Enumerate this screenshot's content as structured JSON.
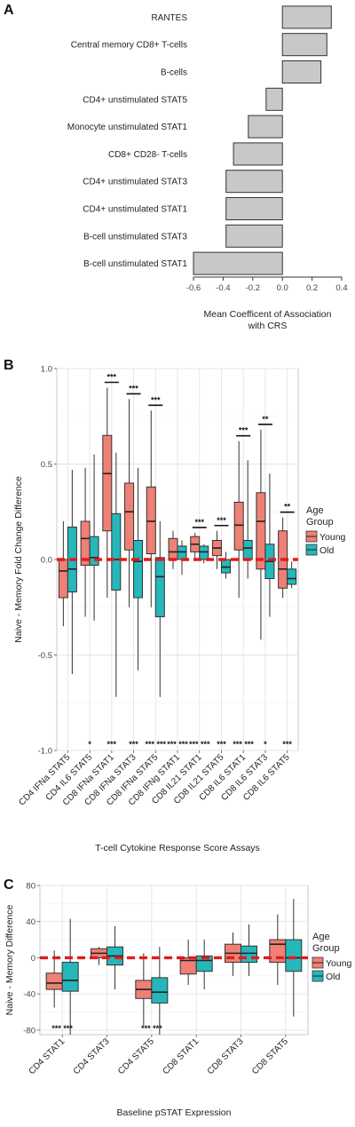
{
  "panels": {
    "A": {
      "letter": "A",
      "chart_data": {
        "type": "bar",
        "orientation": "horizontal",
        "categories": [
          "RANTES",
          "Central memory CD8+ T-cells",
          "B-cells",
          "CD4+ unstimulated STAT5",
          "Monocyte unstimulated STAT1",
          "CD8+ CD28- T-cells",
          "CD4+ unstimulated STAT3",
          "CD4+ unstimulated STAT1",
          "B-cell unstimulated STAT3",
          "B-cell unstimulated STAT1"
        ],
        "values": [
          0.33,
          0.3,
          0.26,
          -0.11,
          -0.23,
          -0.33,
          -0.38,
          -0.38,
          -0.38,
          -0.6
        ],
        "xlabel": "Mean Coefficent of Association\nwith CRS",
        "xlim": [
          -0.6,
          0.4
        ],
        "ticks": [
          -0.6,
          -0.4,
          -0.2,
          0.0,
          0.2,
          0.4
        ],
        "tick_labels": [
          "-0.6",
          "-0.4",
          "-0.2",
          "0.0",
          "0.2",
          "0.4"
        ],
        "bar_color": "#c8c8c8",
        "grid": false
      }
    },
    "B": {
      "letter": "B",
      "chart_data": {
        "type": "box",
        "categories": [
          "CD4 IFNa STAT5",
          "CD4 IL6 STAT5",
          "CD8 IFNa STAT1",
          "CD8 IFNa STAT3",
          "CD8 IFNa STAT5",
          "CD8 IFNg STAT1",
          "CD8 IL21 STAT1",
          "CD8 IL21 STAT5",
          "CD8 IL6 STAT1",
          "CD8 IL6 STAT3",
          "CD8 IL6 STAT5"
        ],
        "series": [
          {
            "name": "Young",
            "color": "#ef8075",
            "boxes": [
              {
                "min": -0.35,
                "q1": -0.2,
                "median": -0.06,
                "q3": 0.0,
                "max": 0.2
              },
              {
                "min": -0.3,
                "q1": -0.03,
                "median": 0.11,
                "q3": 0.2,
                "max": 0.48
              },
              {
                "min": -0.2,
                "q1": 0.15,
                "median": 0.45,
                "q3": 0.65,
                "max": 0.9
              },
              {
                "min": -0.25,
                "q1": 0.05,
                "median": 0.25,
                "q3": 0.4,
                "max": 0.84
              },
              {
                "min": -0.25,
                "q1": 0.03,
                "median": 0.2,
                "q3": 0.38,
                "max": 0.78
              },
              {
                "min": -0.05,
                "q1": 0.0,
                "median": 0.04,
                "q3": 0.11,
                "max": 0.15
              },
              {
                "min": 0.0,
                "q1": 0.04,
                "median": 0.08,
                "q3": 0.12,
                "max": 0.14
              },
              {
                "min": -0.05,
                "q1": 0.02,
                "median": 0.06,
                "q3": 0.1,
                "max": 0.15
              },
              {
                "min": -0.2,
                "q1": 0.05,
                "median": 0.18,
                "q3": 0.3,
                "max": 0.62
              },
              {
                "min": -0.42,
                "q1": -0.05,
                "median": 0.2,
                "q3": 0.35,
                "max": 0.68
              },
              {
                "min": -0.2,
                "q1": -0.15,
                "median": -0.05,
                "q3": 0.15,
                "max": 0.22
              }
            ]
          },
          {
            "name": "Old",
            "color": "#26b7ba",
            "boxes": [
              {
                "min": -0.6,
                "q1": -0.17,
                "median": -0.05,
                "q3": 0.17,
                "max": 0.47
              },
              {
                "min": -0.32,
                "q1": -0.03,
                "median": 0.01,
                "q3": 0.12,
                "max": 0.55
              },
              {
                "min": -0.72,
                "q1": -0.16,
                "median": 0.0,
                "q3": 0.24,
                "max": 0.56
              },
              {
                "min": -0.58,
                "q1": -0.2,
                "median": -0.01,
                "q3": 0.1,
                "max": 0.48
              },
              {
                "min": -0.72,
                "q1": -0.3,
                "median": -0.09,
                "q3": 0.01,
                "max": 0.2
              },
              {
                "min": -0.08,
                "q1": 0.0,
                "median": 0.04,
                "q3": 0.07,
                "max": 0.1
              },
              {
                "min": -0.02,
                "q1": 0.0,
                "median": 0.04,
                "q3": 0.07,
                "max": 0.08
              },
              {
                "min": -0.1,
                "q1": -0.07,
                "median": -0.04,
                "q3": 0.0,
                "max": 0.04
              },
              {
                "min": -0.1,
                "q1": 0.0,
                "median": 0.06,
                "q3": 0.1,
                "max": 0.52
              },
              {
                "min": -0.3,
                "q1": -0.1,
                "median": -0.01,
                "q3": 0.08,
                "max": 0.45
              },
              {
                "min": -0.15,
                "q1": -0.13,
                "median": -0.1,
                "q3": -0.05,
                "max": -0.01
              }
            ]
          }
        ],
        "top_sig": [
          "",
          "",
          "***",
          "***",
          "***",
          "",
          "***",
          "***",
          "***",
          "**",
          "**"
        ],
        "bottom_sig": [
          "",
          "*",
          "***",
          "***",
          "*** ***",
          "*** ***",
          "*** ***",
          "***",
          "*** ***",
          "*",
          "***"
        ],
        "reference_line": 0,
        "ylim": [
          -1.0,
          1.0
        ],
        "ticks": [
          -1.0,
          -0.5,
          0.0,
          0.5,
          1.0
        ],
        "tick_labels": [
          "-1.0",
          "-0.5",
          "0.0",
          "0.5",
          "1.0"
        ],
        "ylabel": "Naive - Memory Fold Change Difference",
        "xlabel": "T-cell Cytokine Response Score Assays",
        "legend_title": "Age\nGroup",
        "legend": [
          "Young",
          "Old"
        ],
        "legend_position": "right",
        "grid": true
      }
    },
    "C": {
      "letter": "C",
      "chart_data": {
        "type": "box",
        "categories": [
          "CD4 STAT1",
          "CD4 STAT3",
          "CD4 STAT5",
          "CD8 STAT1",
          "CD8 STAT3",
          "CD8 STAT5"
        ],
        "series": [
          {
            "name": "Young",
            "color": "#ef8075",
            "boxes": [
              {
                "min": -55,
                "q1": -35,
                "median": -28,
                "q3": -17,
                "max": 8
              },
              {
                "min": -8,
                "q1": 0,
                "median": 5,
                "q3": 10,
                "max": 12
              },
              {
                "min": -75,
                "q1": -45,
                "median": -35,
                "q3": -25,
                "max": 5
              },
              {
                "min": -30,
                "q1": -18,
                "median": -3,
                "q3": 0,
                "max": 20
              },
              {
                "min": -20,
                "q1": -5,
                "median": 5,
                "q3": 15,
                "max": 28
              },
              {
                "min": -30,
                "q1": -5,
                "median": 15,
                "q3": 20,
                "max": 48
              }
            ]
          },
          {
            "name": "Old",
            "color": "#26b7ba",
            "boxes": [
              {
                "min": -85,
                "q1": -37,
                "median": -25,
                "q3": -5,
                "max": 43
              },
              {
                "min": -35,
                "q1": -8,
                "median": 2,
                "q3": 12,
                "max": 35
              },
              {
                "min": -85,
                "q1": -50,
                "median": -38,
                "q3": -22,
                "max": 12
              },
              {
                "min": -35,
                "q1": -15,
                "median": -3,
                "q3": 2,
                "max": 20
              },
              {
                "min": -20,
                "q1": -5,
                "median": 5,
                "q3": 13,
                "max": 37
              },
              {
                "min": -65,
                "q1": -15,
                "median": 0,
                "q3": 20,
                "max": 65
              }
            ]
          }
        ],
        "bottom_sig": [
          "*** ***",
          "",
          "*** ***",
          "",
          "",
          ""
        ],
        "reference_line": 0,
        "ylim": [
          -85,
          80
        ],
        "ticks": [
          -80,
          -40,
          0,
          40,
          80
        ],
        "tick_labels": [
          "-80",
          "-40",
          "0",
          "40",
          "80"
        ],
        "ylabel": "Naive - Memory Difference",
        "xlabel": "Baseline pSTAT Expression",
        "legend_title": "Age\nGroup",
        "legend": [
          "Young",
          "Old"
        ],
        "legend_position": "right",
        "grid": true
      }
    }
  }
}
